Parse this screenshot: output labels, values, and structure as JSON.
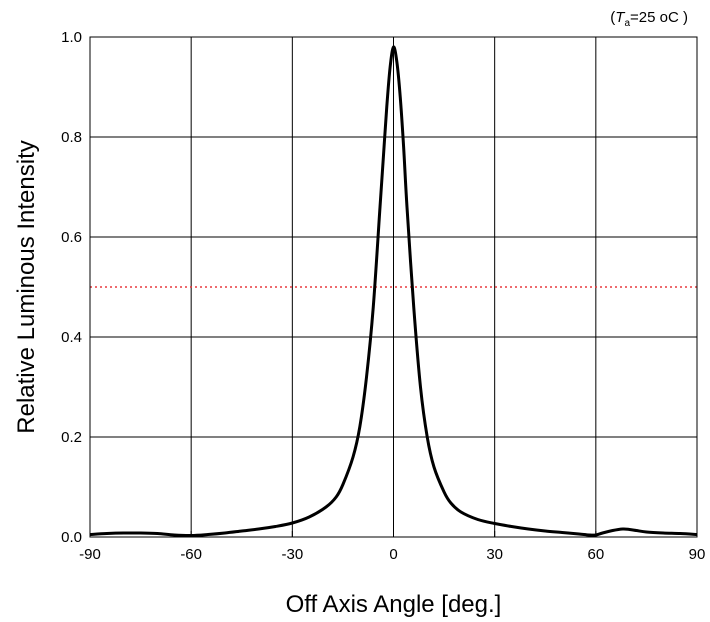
{
  "chart_data": {
    "type": "line",
    "xlabel": "Off Axis Angle [deg.]",
    "ylabel": "Relative Luminous Intensity",
    "condition": {
      "open": "(",
      "symbol": "T",
      "subscript": "a",
      "value": "=25 ",
      "unit": "oC",
      "close": " )"
    },
    "xlim": [
      -90,
      90
    ],
    "ylim": [
      0,
      1.0
    ],
    "xticks": [
      -90,
      -60,
      -30,
      0,
      30,
      60,
      90
    ],
    "xtick_labels": [
      "-90",
      "-60",
      "-30",
      "0",
      "30",
      "60",
      "90"
    ],
    "yticks": [
      0,
      0.2,
      0.4,
      0.6,
      0.8,
      1.0
    ],
    "ytick_labels": [
      "0.0",
      "0.2",
      "0.4",
      "0.6",
      "0.8",
      "1.0"
    ],
    "grid": true,
    "reference_line": {
      "y": 0.5,
      "style": "dotted",
      "color": "#e8393f"
    },
    "series": [
      {
        "color": "#000000",
        "x": [
          -90,
          -85,
          -80,
          -75,
          -70,
          -65,
          -60,
          -55,
          -50,
          -45,
          -40,
          -35,
          -30,
          -25,
          -20,
          -17,
          -15,
          -12,
          -10,
          -8,
          -6,
          -4,
          -3,
          -2,
          -1,
          0,
          1,
          2,
          3,
          4,
          6,
          8,
          10,
          12,
          15,
          17,
          20,
          25,
          30,
          35,
          40,
          45,
          50,
          55,
          58,
          60,
          62,
          65,
          68,
          70,
          72,
          75,
          80,
          85,
          90
        ],
        "y": [
          0.005,
          0.007,
          0.008,
          0.008,
          0.007,
          0.004,
          0.003,
          0.005,
          0.008,
          0.012,
          0.016,
          0.021,
          0.028,
          0.04,
          0.06,
          0.08,
          0.105,
          0.16,
          0.22,
          0.32,
          0.46,
          0.66,
          0.76,
          0.86,
          0.94,
          0.98,
          0.95,
          0.88,
          0.78,
          0.66,
          0.46,
          0.3,
          0.2,
          0.14,
          0.09,
          0.068,
          0.05,
          0.035,
          0.027,
          0.021,
          0.016,
          0.012,
          0.009,
          0.006,
          0.004,
          0.004,
          0.008,
          0.013,
          0.016,
          0.015,
          0.013,
          0.01,
          0.008,
          0.007,
          0.005
        ]
      }
    ]
  }
}
